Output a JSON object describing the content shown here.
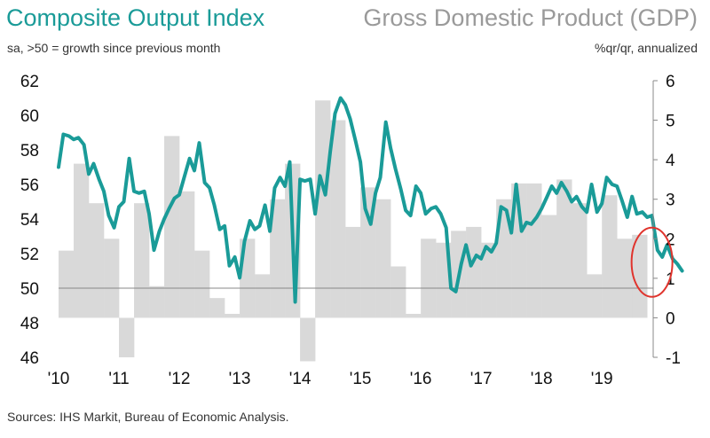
{
  "titles": {
    "left_title": "Composite Output Index",
    "left_subtitle": "sa, >50 = growth since previous month",
    "right_title": "Gross Domestic Product (GDP)",
    "right_subtitle": "%qr/qr, annualized",
    "source": "Sources: IHS Markit, Bureau of Economic Analysis."
  },
  "colors": {
    "line": "#1a9b98",
    "bars": "#d9d9d9",
    "highlight_circle": "#e0342d",
    "axis": "#888888"
  },
  "chart_data": {
    "type": "bar+line",
    "title": "Composite Output Index",
    "left_axis": {
      "label": "sa, >50 = growth since previous month",
      "ylim": [
        46,
        62
      ],
      "ticks": [
        "46",
        "48",
        "50",
        "52",
        "54",
        "56",
        "58",
        "60",
        "62"
      ]
    },
    "right_axis": {
      "label": "%qr/qr, annualized",
      "ylim": [
        -1,
        6
      ],
      "ticks": [
        "-1",
        "0",
        "1",
        "2",
        "3",
        "4",
        "5",
        "6"
      ]
    },
    "x_ticks": [
      "'10",
      "'11",
      "'12",
      "'13",
      "'14",
      "'15",
      "'16",
      "'17",
      "'18",
      "'19"
    ],
    "x_range": [
      2010.0,
      2019.85
    ],
    "reference_line": {
      "axis": "left",
      "value": 50
    },
    "bars": {
      "name": "Gross Domestic Product (GDP)",
      "axis": "right",
      "quarters": [
        "2010Q1",
        "2010Q2",
        "2010Q3",
        "2010Q4",
        "2011Q1",
        "2011Q2",
        "2011Q3",
        "2011Q4",
        "2012Q1",
        "2012Q2",
        "2012Q3",
        "2012Q4",
        "2013Q1",
        "2013Q2",
        "2013Q3",
        "2013Q4",
        "2014Q1",
        "2014Q2",
        "2014Q3",
        "2014Q4",
        "2015Q1",
        "2015Q2",
        "2015Q3",
        "2015Q4",
        "2016Q1",
        "2016Q2",
        "2016Q3",
        "2016Q4",
        "2017Q1",
        "2017Q2",
        "2017Q3",
        "2017Q4",
        "2018Q1",
        "2018Q2",
        "2018Q3",
        "2018Q4",
        "2019Q1",
        "2019Q2",
        "2019Q3"
      ],
      "values": [
        1.7,
        3.9,
        2.9,
        2.0,
        -1.0,
        2.9,
        0.8,
        4.6,
        3.2,
        1.7,
        0.5,
        0.1,
        2.0,
        1.1,
        3.0,
        3.9,
        -1.1,
        5.5,
        5.0,
        2.3,
        3.3,
        3.0,
        1.3,
        0.1,
        2.0,
        1.9,
        2.2,
        2.3,
        1.9,
        3.0,
        3.4,
        3.4,
        2.6,
        3.5,
        2.9,
        1.1,
        3.1,
        2.0,
        2.1
      ]
    },
    "series": [
      {
        "name": "Composite Output Index",
        "axis": "left",
        "values": [
          [
            2010.0,
            57.0
          ],
          [
            2010.08,
            58.9
          ],
          [
            2010.17,
            58.8
          ],
          [
            2010.25,
            58.6
          ],
          [
            2010.33,
            58.7
          ],
          [
            2010.42,
            58.3
          ],
          [
            2010.5,
            56.6
          ],
          [
            2010.58,
            57.2
          ],
          [
            2010.67,
            56.3
          ],
          [
            2010.75,
            55.6
          ],
          [
            2010.83,
            54.2
          ],
          [
            2010.92,
            53.5
          ],
          [
            2011.0,
            54.7
          ],
          [
            2011.08,
            55.0
          ],
          [
            2011.17,
            57.5
          ],
          [
            2011.25,
            55.6
          ],
          [
            2011.33,
            55.5
          ],
          [
            2011.42,
            55.6
          ],
          [
            2011.5,
            54.3
          ],
          [
            2011.58,
            52.2
          ],
          [
            2011.67,
            53.3
          ],
          [
            2011.75,
            54.0
          ],
          [
            2011.83,
            54.6
          ],
          [
            2011.92,
            55.2
          ],
          [
            2012.0,
            55.4
          ],
          [
            2012.08,
            56.4
          ],
          [
            2012.17,
            57.5
          ],
          [
            2012.25,
            56.8
          ],
          [
            2012.33,
            58.4
          ],
          [
            2012.42,
            56.1
          ],
          [
            2012.5,
            55.8
          ],
          [
            2012.58,
            54.8
          ],
          [
            2012.67,
            53.4
          ],
          [
            2012.75,
            53.6
          ],
          [
            2012.83,
            51.3
          ],
          [
            2012.92,
            51.8
          ],
          [
            2013.0,
            50.6
          ],
          [
            2013.08,
            52.7
          ],
          [
            2013.17,
            53.9
          ],
          [
            2013.25,
            53.4
          ],
          [
            2013.33,
            53.6
          ],
          [
            2013.42,
            54.8
          ],
          [
            2013.5,
            53.3
          ],
          [
            2013.58,
            55.8
          ],
          [
            2013.67,
            56.4
          ],
          [
            2013.75,
            55.9
          ],
          [
            2013.83,
            57.3
          ],
          [
            2013.92,
            49.2
          ],
          [
            2014.0,
            56.3
          ],
          [
            2014.08,
            56.2
          ],
          [
            2014.17,
            56.3
          ],
          [
            2014.25,
            54.3
          ],
          [
            2014.33,
            56.5
          ],
          [
            2014.42,
            55.4
          ],
          [
            2014.5,
            57.9
          ],
          [
            2014.58,
            60.1
          ],
          [
            2014.67,
            61.0
          ],
          [
            2014.75,
            60.6
          ],
          [
            2014.83,
            59.8
          ],
          [
            2014.92,
            58.5
          ],
          [
            2015.0,
            57.3
          ],
          [
            2015.08,
            54.6
          ],
          [
            2015.17,
            53.7
          ],
          [
            2015.25,
            55.5
          ],
          [
            2015.33,
            56.4
          ],
          [
            2015.42,
            59.6
          ],
          [
            2015.5,
            58.1
          ],
          [
            2015.58,
            56.9
          ],
          [
            2015.67,
            55.7
          ],
          [
            2015.75,
            54.5
          ],
          [
            2015.83,
            54.2
          ],
          [
            2015.92,
            55.9
          ],
          [
            2016.0,
            55.5
          ],
          [
            2016.08,
            54.3
          ],
          [
            2016.17,
            54.6
          ],
          [
            2016.25,
            54.7
          ],
          [
            2016.33,
            54.3
          ],
          [
            2016.42,
            53.5
          ],
          [
            2016.5,
            50.0
          ],
          [
            2016.58,
            49.8
          ],
          [
            2016.67,
            51.4
          ],
          [
            2016.75,
            52.5
          ],
          [
            2016.83,
            51.3
          ],
          [
            2016.92,
            51.9
          ],
          [
            2017.0,
            51.7
          ],
          [
            2017.08,
            52.4
          ],
          [
            2017.17,
            52.1
          ],
          [
            2017.25,
            52.6
          ],
          [
            2017.33,
            54.7
          ],
          [
            2017.42,
            54.5
          ],
          [
            2017.5,
            53.2
          ],
          [
            2017.58,
            56.0
          ],
          [
            2017.67,
            53.3
          ],
          [
            2017.75,
            53.8
          ],
          [
            2017.83,
            53.7
          ],
          [
            2017.92,
            54.1
          ],
          [
            2018.0,
            54.6
          ],
          [
            2018.08,
            55.2
          ],
          [
            2018.17,
            55.9
          ],
          [
            2018.25,
            55.5
          ],
          [
            2018.33,
            56.1
          ],
          [
            2018.42,
            55.6
          ],
          [
            2018.5,
            55.0
          ],
          [
            2018.58,
            55.3
          ],
          [
            2018.67,
            54.7
          ],
          [
            2018.75,
            54.4
          ],
          [
            2018.83,
            56.0
          ],
          [
            2018.92,
            54.4
          ],
          [
            2019.0,
            54.9
          ],
          [
            2019.08,
            56.4
          ],
          [
            2019.17,
            56.0
          ],
          [
            2019.25,
            55.9
          ],
          [
            2019.33,
            55.1
          ],
          [
            2019.42,
            54.1
          ],
          [
            2019.5,
            55.3
          ],
          [
            2019.58,
            54.3
          ],
          [
            2019.67,
            54.4
          ],
          [
            2019.75,
            54.1
          ],
          [
            2019.83,
            54.2
          ],
          [
            2019.92,
            52.2
          ],
          [
            2020.0,
            51.8
          ],
          [
            2020.08,
            52.5
          ],
          [
            2020.17,
            51.7
          ],
          [
            2020.25,
            51.4
          ],
          [
            2020.33,
            51.0
          ]
        ]
      }
    ]
  }
}
